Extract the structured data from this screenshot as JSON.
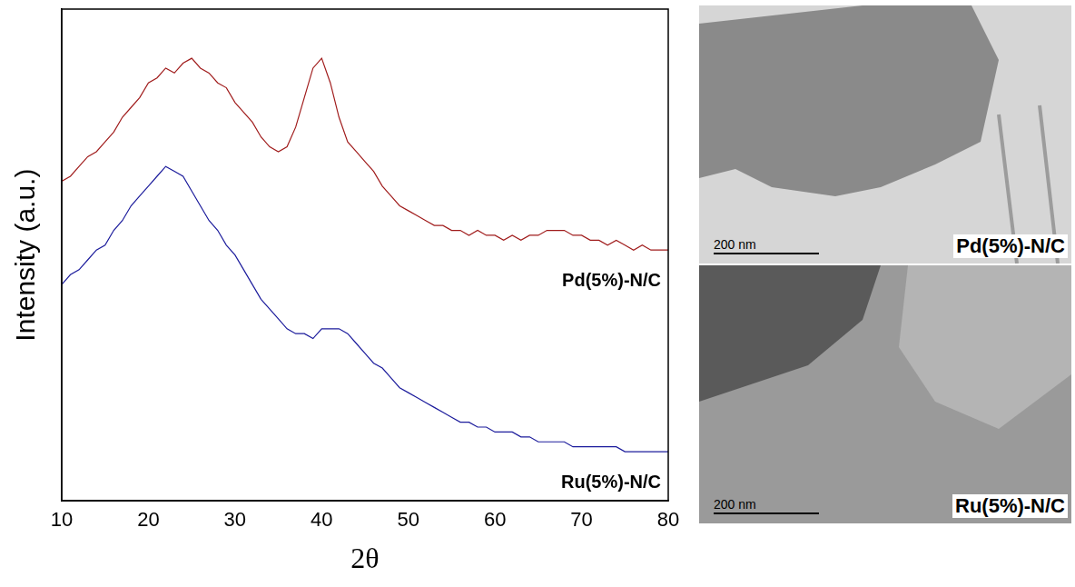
{
  "chart_data": {
    "type": "line",
    "x_label": "2θ",
    "y_label": "Intensity (a.u.)",
    "xlim": [
      10,
      80
    ],
    "xticks": [
      10,
      20,
      30,
      40,
      50,
      60,
      70,
      80
    ],
    "ylim": [
      0,
      100
    ],
    "tick_labels": "x",
    "grid": false,
    "x": [
      10,
      11,
      12,
      13,
      14,
      15,
      16,
      17,
      18,
      19,
      20,
      21,
      22,
      23,
      24,
      25,
      26,
      27,
      28,
      29,
      30,
      31,
      32,
      33,
      34,
      35,
      36,
      37,
      38,
      39,
      40,
      41,
      42,
      43,
      44,
      45,
      46,
      47,
      48,
      49,
      50,
      51,
      52,
      53,
      54,
      55,
      56,
      57,
      58,
      59,
      60,
      61,
      62,
      63,
      64,
      65,
      66,
      67,
      68,
      69,
      70,
      71,
      72,
      73,
      74,
      75,
      76,
      77,
      78,
      79,
      80
    ],
    "series": [
      {
        "name": "Pd(5%)-N/C",
        "color": "#a01c1c",
        "values": [
          65,
          66,
          68,
          70,
          71,
          73,
          75,
          78,
          80,
          82,
          85,
          86,
          88,
          87,
          89,
          90,
          88,
          87,
          85,
          84,
          81,
          79,
          77,
          74,
          72,
          71,
          72,
          76,
          82,
          88,
          90,
          85,
          78,
          73,
          71,
          69,
          67,
          64,
          62,
          60,
          59,
          58,
          57,
          56,
          56,
          55,
          55,
          54,
          55,
          54,
          54,
          53,
          54,
          53,
          54,
          54,
          55,
          55,
          55,
          54,
          54,
          53,
          53,
          52,
          53,
          52,
          51,
          52,
          51,
          51,
          51
        ]
      },
      {
        "name": "Ru(5%)-N/C",
        "color": "#1c1c9c",
        "values": [
          44,
          46,
          47,
          49,
          51,
          52,
          55,
          57,
          60,
          62,
          64,
          66,
          68,
          67,
          66,
          63,
          60,
          57,
          55,
          52,
          50,
          47,
          44,
          41,
          39,
          37,
          35,
          34,
          34,
          33,
          35,
          35,
          35,
          34,
          32,
          30,
          28,
          27,
          25,
          23,
          22,
          21,
          20,
          19,
          18,
          17,
          16,
          16,
          15,
          15,
          14,
          14,
          14,
          13,
          13,
          12,
          12,
          12,
          12,
          11,
          11,
          11,
          11,
          11,
          11,
          10,
          10,
          10,
          10,
          10,
          10
        ]
      }
    ]
  },
  "images": [
    {
      "label": "Pd(5%)-N/C",
      "scale_bar": "200 nm"
    },
    {
      "label": "Ru(5%)-N/C",
      "scale_bar": "200 nm"
    }
  ]
}
